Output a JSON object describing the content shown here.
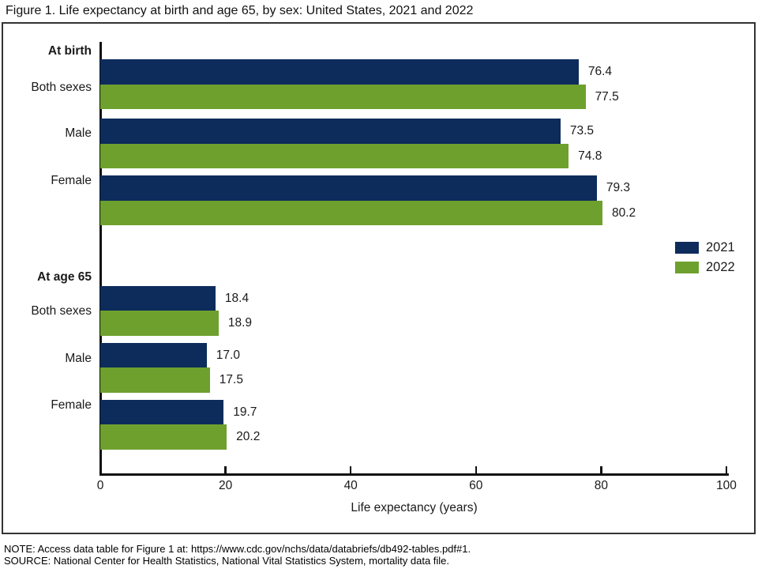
{
  "title": "Figure 1. Life expectancy at birth and age 65, by sex: United States, 2021 and 2022",
  "chart_data": {
    "type": "bar",
    "orientation": "horizontal",
    "title": "Figure 1. Life expectancy at birth and age 65, by sex: United States, 2021 and 2022",
    "xlabel": "Life expectancy (years)",
    "xlim": [
      0,
      100
    ],
    "xticks": [
      0,
      20,
      40,
      60,
      80,
      100
    ],
    "grid": false,
    "legend_position": "right",
    "groups": [
      {
        "heading": "At birth",
        "categories": [
          "Both sexes",
          "Male",
          "Female"
        ],
        "series": [
          {
            "name": "2021",
            "color": "#0d2c5c",
            "values": [
              76.4,
              73.5,
              79.3
            ],
            "labels": [
              "76.4",
              "73.5",
              "79.3"
            ]
          },
          {
            "name": "2022",
            "color": "#6ea02d",
            "values": [
              77.5,
              74.8,
              80.2
            ],
            "labels": [
              "77.5",
              "74.8",
              "80.2"
            ]
          }
        ]
      },
      {
        "heading": "At age 65",
        "categories": [
          "Both sexes",
          "Male",
          "Female"
        ],
        "series": [
          {
            "name": "2021",
            "color": "#0d2c5c",
            "values": [
              18.4,
              17.0,
              19.7
            ],
            "labels": [
              "18.4",
              "17.0",
              "19.7"
            ]
          },
          {
            "name": "2022",
            "color": "#6ea02d",
            "values": [
              18.9,
              17.5,
              20.2
            ],
            "labels": [
              "18.9",
              "17.5",
              "20.2"
            ]
          }
        ]
      }
    ],
    "legend": [
      {
        "label": "2021",
        "color": "#0d2c5c"
      },
      {
        "label": "2022",
        "color": "#6ea02d"
      }
    ]
  },
  "colors": {
    "series_2021": "#0d2c5c",
    "series_2022": "#6ea02d",
    "axis": "#111111",
    "text": "#1a1a1a"
  },
  "footer": {
    "note": "NOTE: Access data table for Figure 1 at: https://www.cdc.gov/nchs/data/databriefs/db492-tables.pdf#1.",
    "source": "SOURCE: National Center for Health Statistics, National Vital Statistics System, mortality data file."
  }
}
